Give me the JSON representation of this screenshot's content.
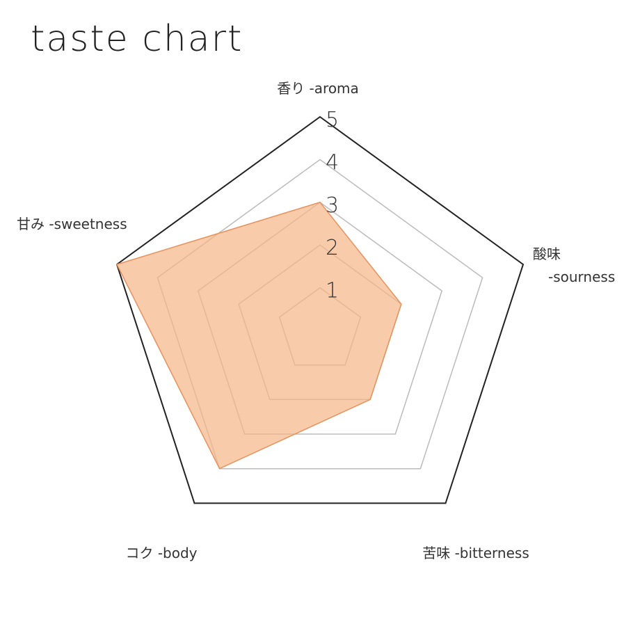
{
  "chart_data": {
    "type": "radar",
    "title": "taste chart",
    "axes": [
      {
        "label": "香り -aroma"
      },
      {
        "label": "酸味",
        "label2": "-sourness"
      },
      {
        "label": "苦味 -bitterness"
      },
      {
        "label": "コク -body"
      },
      {
        "label": "甘み -sweetness"
      }
    ],
    "ticks": [
      "1",
      "2",
      "3",
      "4",
      "5"
    ],
    "rmax": 5,
    "values": [
      3,
      2,
      2,
      4,
      5
    ],
    "colors": {
      "fill": "#f5b588",
      "stroke": "#e8915a",
      "outer": "#222222",
      "grid": "#bbbbbb"
    }
  }
}
